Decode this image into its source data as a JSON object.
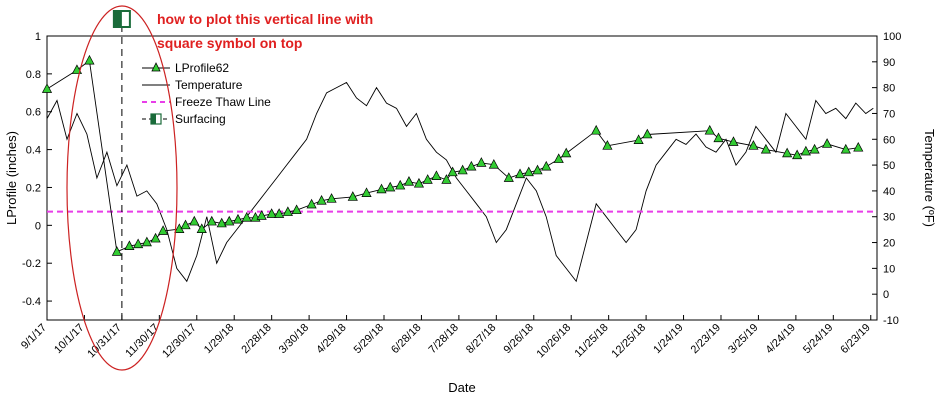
{
  "chart_data": {
    "type": "line",
    "title": "",
    "xlabel": "Date",
    "ylabel_left": "LProfile (inches)",
    "ylabel_right": "Temperature (ºF)",
    "ylim_left": [
      -0.5,
      1.0
    ],
    "ylim_right": [
      -10,
      100
    ],
    "left_ticks": [
      "-0.4",
      "-0.2",
      "0",
      "0.2",
      "0.4",
      "0.6",
      "0.8",
      "1"
    ],
    "right_ticks": [
      "-10",
      "0",
      "10",
      "20",
      "30",
      "40",
      "50",
      "60",
      "70",
      "80",
      "90",
      "100"
    ],
    "x_tick_labels": [
      "9/1/17",
      "10/1/17",
      "10/31/17",
      "11/30/17",
      "12/30/17",
      "1/29/18",
      "2/28/18",
      "3/30/18",
      "4/29/18",
      "5/29/18",
      "6/28/18",
      "7/28/18",
      "8/27/18",
      "9/26/18",
      "10/26/18",
      "11/25/18",
      "12/25/18",
      "1/24/19",
      "2/23/19",
      "3/25/19",
      "4/24/19",
      "5/24/19",
      "6/23/19"
    ],
    "x_range_days": [
      0,
      665
    ],
    "grid": false,
    "legend_position": "top-left-inside",
    "series": [
      {
        "name": "LProfile62",
        "axis": "left",
        "color": "#000000",
        "marker": "triangle",
        "marker_color": "#33cc33",
        "x_days": [
          0,
          24,
          34,
          56,
          66,
          73,
          80,
          87,
          93,
          106,
          111,
          118,
          124,
          132,
          140,
          146,
          153,
          160,
          167,
          172,
          180,
          186,
          193,
          200,
          212,
          220,
          228,
          245,
          256,
          268,
          275,
          283,
          290,
          298,
          305,
          312,
          320,
          325,
          333,
          340,
          348,
          358,
          370,
          379,
          386,
          393,
          400,
          410,
          416,
          440,
          449,
          474,
          481,
          531,
          538,
          550,
          566,
          576,
          593,
          601,
          608,
          615,
          625,
          640,
          650
        ],
        "y": [
          0.72,
          0.82,
          0.87,
          -0.14,
          -0.11,
          -0.1,
          -0.09,
          -0.07,
          -0.03,
          -0.02,
          0.0,
          0.02,
          -0.02,
          0.02,
          0.01,
          0.02,
          0.03,
          0.04,
          0.04,
          0.05,
          0.06,
          0.06,
          0.07,
          0.08,
          0.11,
          0.13,
          0.14,
          0.15,
          0.17,
          0.19,
          0.2,
          0.21,
          0.23,
          0.22,
          0.24,
          0.26,
          0.24,
          0.28,
          0.29,
          0.31,
          0.33,
          0.32,
          0.25,
          0.27,
          0.28,
          0.29,
          0.31,
          0.35,
          0.38,
          0.5,
          0.42,
          0.45,
          0.48,
          0.5,
          0.46,
          0.44,
          0.42,
          0.4,
          0.38,
          0.37,
          0.39,
          0.4,
          0.43,
          0.4,
          0.41
        ]
      },
      {
        "name": "Temperature",
        "axis": "right",
        "color": "#000000",
        "x_days": [
          0,
          8,
          16,
          24,
          32,
          40,
          48,
          56,
          64,
          72,
          80,
          88,
          96,
          104,
          112,
          120,
          128,
          136,
          144,
          152,
          160,
          168,
          176,
          184,
          192,
          200,
          208,
          216,
          224,
          232,
          240,
          248,
          256,
          264,
          272,
          280,
          288,
          296,
          304,
          312,
          320,
          328,
          336,
          344,
          352,
          360,
          368,
          376,
          384,
          392,
          400,
          408,
          416,
          424,
          432,
          440,
          448,
          456,
          464,
          472,
          480,
          488,
          496,
          504,
          512,
          520,
          528,
          536,
          544,
          552,
          560,
          568,
          576,
          584,
          592,
          600,
          608,
          616,
          624,
          632,
          640,
          648,
          656,
          662
        ],
        "y": [
          68,
          75,
          60,
          70,
          62,
          45,
          55,
          42,
          50,
          38,
          40,
          35,
          25,
          10,
          5,
          15,
          30,
          12,
          20,
          25,
          30,
          35,
          40,
          45,
          50,
          55,
          60,
          70,
          78,
          80,
          82,
          76,
          73,
          80,
          74,
          72,
          65,
          70,
          60,
          55,
          52,
          45,
          40,
          35,
          30,
          20,
          25,
          35,
          45,
          40,
          30,
          15,
          10,
          5,
          20,
          35,
          30,
          25,
          20,
          25,
          40,
          50,
          55,
          60,
          58,
          62,
          57,
          55,
          60,
          50,
          55,
          65,
          60,
          55,
          70,
          65,
          60,
          75,
          70,
          72,
          68,
          74,
          70,
          72
        ]
      },
      {
        "name": "Freeze Thaw Line",
        "axis": "right",
        "color": "#e83ee8",
        "style": "dashed",
        "y": 32
      },
      {
        "name": "Surfacing",
        "axis": "left",
        "color": "#000000",
        "style": "dashed-vertical",
        "marker": "half-filled-square",
        "marker_color": "#1a6b3a",
        "x_days": [
          60
        ]
      }
    ],
    "annotation": {
      "line1": "how to plot this vertical line with",
      "line2": "square symbol on top"
    }
  }
}
